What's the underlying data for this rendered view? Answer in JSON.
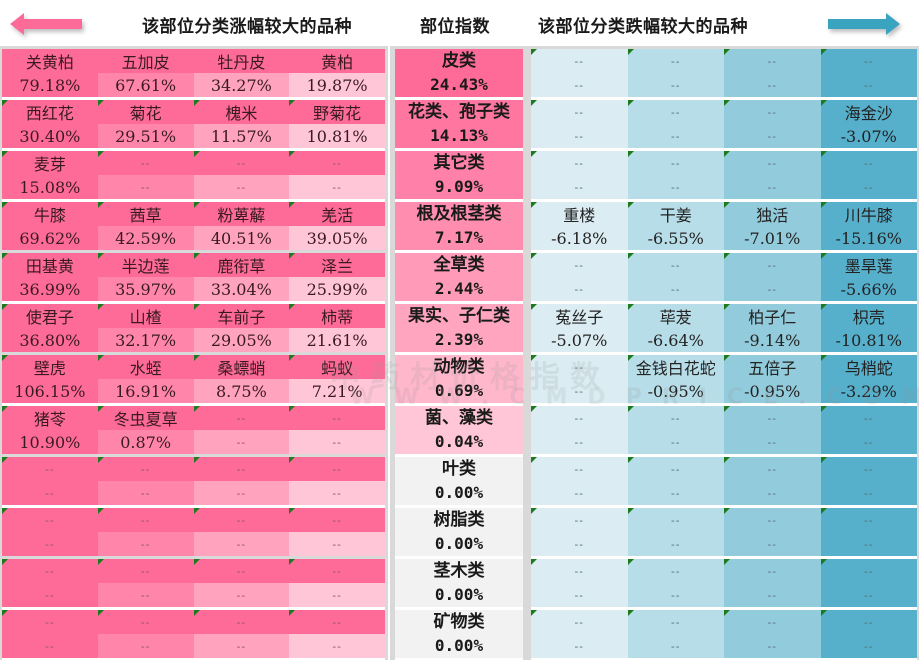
{
  "header": {
    "left_title": "该部位分类涨幅较大的品种",
    "mid_title": "部位指数",
    "right_title": "该部位分类跌幅较大的品种",
    "left_arrow_icon": "arrow-left-icon",
    "right_arrow_icon": "arrow-right-icon"
  },
  "colors": {
    "up_accent": "#ff6b98",
    "up_col2": "#ff86aa",
    "up_col3": "#ffa3bf",
    "up_col4": "#ffc6d8",
    "down_col1": "#dbedf3",
    "down_col2": "#b7dde8",
    "down_col3": "#92cbdb",
    "down_col4": "#56afcb",
    "flag_green": "#1e7a1e"
  },
  "placeholder": "--",
  "watermark": {
    "line1": "中药材价格指数",
    "line2": "WWW.CMDPRICE.COM"
  },
  "rising": [
    {
      "gap": true,
      "items": [
        {
          "name": "关黄柏",
          "value": "79.18%"
        },
        {
          "name": "五加皮",
          "value": "67.61%"
        },
        {
          "name": "牡丹皮",
          "value": "34.27%"
        },
        {
          "name": "黄柏",
          "value": "19.87%"
        }
      ]
    },
    {
      "gap": true,
      "items": [
        {
          "name": "西红花",
          "value": "30.40%"
        },
        {
          "name": "菊花",
          "value": "29.51%"
        },
        {
          "name": "槐米",
          "value": "11.57%"
        },
        {
          "name": "野菊花",
          "value": "10.81%"
        }
      ]
    },
    {
      "gap": true,
      "items": [
        {
          "name": "麦芽",
          "value": "15.08%"
        },
        {
          "name": "--",
          "value": "--"
        },
        {
          "name": "--",
          "value": "--"
        },
        {
          "name": "--",
          "value": "--"
        }
      ]
    },
    {
      "gap": false,
      "items": [
        {
          "name": "牛膝",
          "value": "69.62%"
        },
        {
          "name": "茜草",
          "value": "42.59%"
        },
        {
          "name": "粉萆薢",
          "value": "40.51%"
        },
        {
          "name": "羌活",
          "value": "39.05%"
        }
      ]
    },
    {
      "gap": true,
      "items": [
        {
          "name": "田基黄",
          "value": "36.99%"
        },
        {
          "name": "半边莲",
          "value": "35.97%"
        },
        {
          "name": "鹿衔草",
          "value": "33.04%"
        },
        {
          "name": "泽兰",
          "value": "25.99%"
        }
      ]
    },
    {
      "gap": false,
      "items": [
        {
          "name": "使君子",
          "value": "36.80%"
        },
        {
          "name": "山楂",
          "value": "32.17%"
        },
        {
          "name": "车前子",
          "value": "29.05%"
        },
        {
          "name": "柿蒂",
          "value": "21.61%"
        }
      ]
    },
    {
      "gap": true,
      "items": [
        {
          "name": "壁虎",
          "value": "106.15%"
        },
        {
          "name": "水蛭",
          "value": "16.91%"
        },
        {
          "name": "桑螵蛸",
          "value": "8.75%"
        },
        {
          "name": "蚂蚁",
          "value": "7.21%"
        }
      ]
    },
    {
      "gap": false,
      "items": [
        {
          "name": "猪苓",
          "value": "10.90%"
        },
        {
          "name": "冬虫夏草",
          "value": "0.87%"
        },
        {
          "name": "--",
          "value": "--"
        },
        {
          "name": "--",
          "value": "--"
        }
      ]
    },
    {
      "gap": true,
      "items": [
        {
          "name": "--",
          "value": "--"
        },
        {
          "name": "--",
          "value": "--"
        },
        {
          "name": "--",
          "value": "--"
        },
        {
          "name": "--",
          "value": "--"
        }
      ]
    },
    {
      "gap": false,
      "items": [
        {
          "name": "--",
          "value": "--"
        },
        {
          "name": "--",
          "value": "--"
        },
        {
          "name": "--",
          "value": "--"
        },
        {
          "name": "--",
          "value": "--"
        }
      ]
    },
    {
      "gap": true,
      "items": [
        {
          "name": "--",
          "value": "--"
        },
        {
          "name": "--",
          "value": "--"
        },
        {
          "name": "--",
          "value": "--"
        },
        {
          "name": "--",
          "value": "--"
        }
      ]
    },
    {
      "gap": true,
      "items": [
        {
          "name": "--",
          "value": "--"
        },
        {
          "name": "--",
          "value": "--"
        },
        {
          "name": "--",
          "value": "--"
        },
        {
          "name": "--",
          "value": "--"
        }
      ]
    }
  ],
  "categories": [
    {
      "name": "皮类",
      "index": "24.43%",
      "color": "#ff6b98"
    },
    {
      "name": "花类、孢子类",
      "index": "14.13%",
      "color": "#ff77a1"
    },
    {
      "name": "其它类",
      "index": "9.09%",
      "color": "#ff80a8"
    },
    {
      "name": "根及根茎类",
      "index": "7.17%",
      "color": "#ff8daf"
    },
    {
      "name": "全草类",
      "index": "2.44%",
      "color": "#ff9bb9"
    },
    {
      "name": "果实、子仁类",
      "index": "2.39%",
      "color": "#ffa5c0"
    },
    {
      "name": "动物类",
      "index": "0.69%",
      "color": "#ffb7cc"
    },
    {
      "name": "菌、藻类",
      "index": "0.04%",
      "color": "#ffc6d7"
    },
    {
      "name": "叶类",
      "index": "0.00%",
      "color": "#f2f2f2"
    },
    {
      "name": "树脂类",
      "index": "0.00%",
      "color": "#f2f2f2"
    },
    {
      "name": "茎木类",
      "index": "0.00%",
      "color": "#f2f2f2"
    },
    {
      "name": "矿物类",
      "index": "0.00%",
      "color": "#f2f2f2"
    }
  ],
  "falling": [
    {
      "items": [
        {
          "name": "--",
          "value": "--"
        },
        {
          "name": "--",
          "value": "--"
        },
        {
          "name": "--",
          "value": "--"
        },
        {
          "name": "--",
          "value": "--"
        }
      ]
    },
    {
      "items": [
        {
          "name": "--",
          "value": "--"
        },
        {
          "name": "--",
          "value": "--"
        },
        {
          "name": "--",
          "value": "--"
        },
        {
          "name": "海金沙",
          "value": "-3.07%"
        }
      ]
    },
    {
      "items": [
        {
          "name": "--",
          "value": "--"
        },
        {
          "name": "--",
          "value": "--"
        },
        {
          "name": "--",
          "value": "--"
        },
        {
          "name": "--",
          "value": "--"
        }
      ]
    },
    {
      "items": [
        {
          "name": "重楼",
          "value": "-6.18%"
        },
        {
          "name": "干姜",
          "value": "-6.55%"
        },
        {
          "name": "独活",
          "value": "-7.01%"
        },
        {
          "name": "川牛膝",
          "value": "-15.16%"
        }
      ]
    },
    {
      "items": [
        {
          "name": "--",
          "value": "--"
        },
        {
          "name": "--",
          "value": "--"
        },
        {
          "name": "--",
          "value": "--"
        },
        {
          "name": "墨旱莲",
          "value": "-5.66%"
        }
      ]
    },
    {
      "items": [
        {
          "name": "菟丝子",
          "value": "-5.07%"
        },
        {
          "name": "荜茇",
          "value": "-6.64%"
        },
        {
          "name": "柏子仁",
          "value": "-9.14%"
        },
        {
          "name": "枳壳",
          "value": "-10.81%"
        }
      ]
    },
    {
      "items": [
        {
          "name": "--",
          "value": "--"
        },
        {
          "name": "金钱白花蛇",
          "value": "-0.95%"
        },
        {
          "name": "五倍子",
          "value": "-0.95%"
        },
        {
          "name": "乌梢蛇",
          "value": "-3.29%"
        }
      ]
    },
    {
      "items": [
        {
          "name": "--",
          "value": "--"
        },
        {
          "name": "--",
          "value": "--"
        },
        {
          "name": "--",
          "value": "--"
        },
        {
          "name": "--",
          "value": "--"
        }
      ]
    },
    {
      "items": [
        {
          "name": "--",
          "value": "--"
        },
        {
          "name": "--",
          "value": "--"
        },
        {
          "name": "--",
          "value": "--"
        },
        {
          "name": "--",
          "value": "--"
        }
      ]
    },
    {
      "items": [
        {
          "name": "--",
          "value": "--"
        },
        {
          "name": "--",
          "value": "--"
        },
        {
          "name": "--",
          "value": "--"
        },
        {
          "name": "--",
          "value": "--"
        }
      ]
    },
    {
      "items": [
        {
          "name": "--",
          "value": "--"
        },
        {
          "name": "--",
          "value": "--"
        },
        {
          "name": "--",
          "value": "--"
        },
        {
          "name": "--",
          "value": "--"
        }
      ]
    },
    {
      "items": [
        {
          "name": "--",
          "value": "--"
        },
        {
          "name": "--",
          "value": "--"
        },
        {
          "name": "--",
          "value": "--"
        },
        {
          "name": "--",
          "value": "--"
        }
      ]
    }
  ]
}
